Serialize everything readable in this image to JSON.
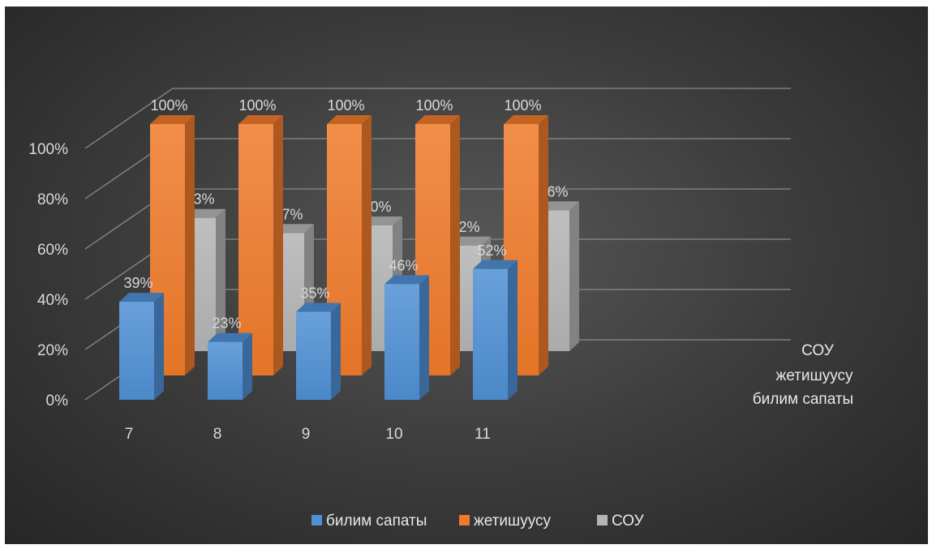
{
  "chart_data": {
    "type": "bar",
    "subtype": "3d-clustered-column",
    "categories": [
      "7",
      "8",
      "9",
      "10",
      "11"
    ],
    "series": [
      {
        "name": "билим сапаты",
        "values": [
          39,
          23,
          35,
          46,
          52
        ],
        "labels": [
          "39%",
          "23%",
          "35%",
          "46%",
          "52%"
        ],
        "color": "#4f8fd4"
      },
      {
        "name": "жетишуусу",
        "values": [
          100,
          100,
          100,
          100,
          100
        ],
        "labels": [
          "100%",
          "100%",
          "100%",
          "100%",
          "100%"
        ],
        "color": "#ef7a2a"
      },
      {
        "name": "СОУ",
        "values": [
          53,
          47,
          50,
          42,
          56
        ],
        "labels": [
          "53%",
          "47%",
          "50%",
          "42%",
          "56%"
        ],
        "color": "#b4b4b4"
      }
    ],
    "y_ticks": [
      "0%",
      "20%",
      "40%",
      "60%",
      "80%",
      "100%"
    ],
    "ylim": [
      0,
      100
    ],
    "depth_labels": [
      "СОУ",
      "жетишуусу",
      "билим сапаты"
    ],
    "legend": {
      "position": "bottom",
      "items": [
        "билим сапаты",
        "жетишуусу",
        "СОУ"
      ]
    },
    "grid": true
  }
}
